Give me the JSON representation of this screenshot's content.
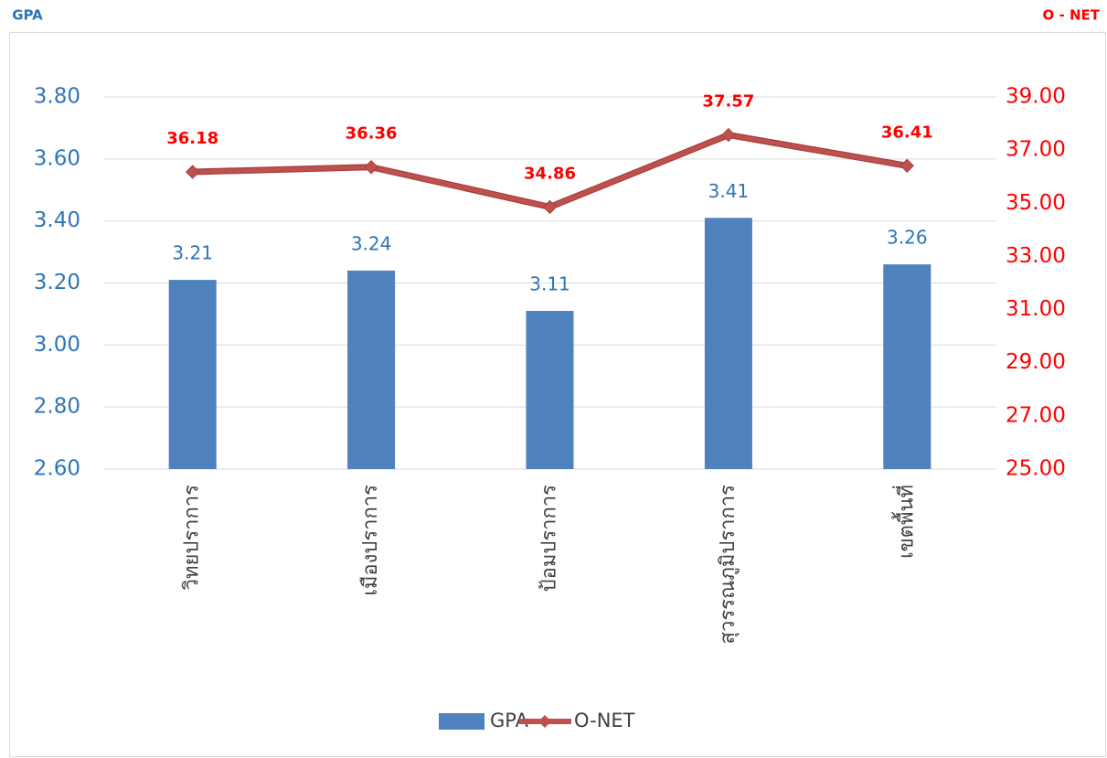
{
  "chart_data": {
    "type": "bar_line",
    "y_label": "GPA",
    "y2_label": "O - NET",
    "categories": [
      "วิทยปราการ",
      "เมืองปราการ",
      "ป้อมปราการ",
      "สุวรรณภูมิปราการ",
      "เขตพื้นที่"
    ],
    "series": [
      {
        "name": "GPA",
        "type": "bar",
        "color": "#4f81bd",
        "label_color": "#2e75b6",
        "values": [
          3.21,
          3.24,
          3.11,
          3.41,
          3.26
        ]
      },
      {
        "name": "O-NET",
        "type": "line",
        "axis": "y2",
        "color": "#c0504d",
        "label_color": "#ff0000",
        "values": [
          36.18,
          36.36,
          34.86,
          37.57,
          36.41
        ]
      }
    ],
    "ylim": [
      2.6,
      3.8
    ],
    "yticks": [
      {
        "value": 2.6,
        "label": "2.60"
      },
      {
        "value": 2.8,
        "label": "2.80"
      },
      {
        "value": 3.0,
        "label": "3.00"
      },
      {
        "value": 3.2,
        "label": "3.20"
      },
      {
        "value": 3.4,
        "label": "3.40"
      },
      {
        "value": 3.6,
        "label": "3.60"
      },
      {
        "value": 3.8,
        "label": "3.80"
      }
    ],
    "y2lim": [
      25,
      39
    ],
    "y2ticks": [
      {
        "value": 25,
        "label": "25.00"
      },
      {
        "value": 27,
        "label": "27.00"
      },
      {
        "value": 29,
        "label": "29.00"
      },
      {
        "value": 31,
        "label": "31.00"
      },
      {
        "value": 33,
        "label": "33.00"
      },
      {
        "value": 35,
        "label": "35.00"
      },
      {
        "value": 37,
        "label": "37.00"
      },
      {
        "value": 39,
        "label": "39.00"
      }
    ],
    "grid": true,
    "legend": "bottom"
  }
}
